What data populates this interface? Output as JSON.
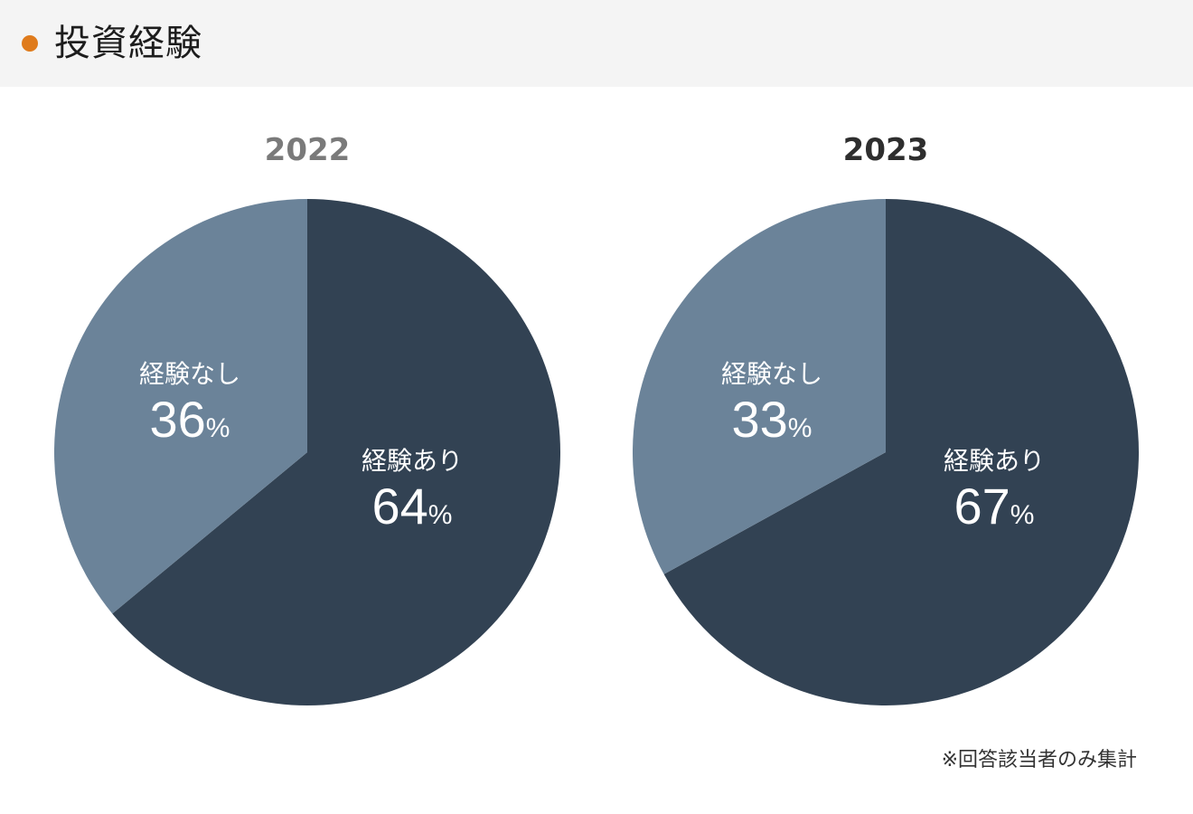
{
  "header": {
    "title": "投資経験",
    "accent_color": "#df7b1c"
  },
  "chart_data": [
    {
      "type": "pie",
      "title": "2022",
      "title_color": "#7a7a7a",
      "unit": "%",
      "slices": [
        {
          "label": "経験あり",
          "value": 64,
          "color": "#324253"
        },
        {
          "label": "経験なし",
          "value": 36,
          "color": "#6b8399"
        }
      ]
    },
    {
      "type": "pie",
      "title": "2023",
      "title_color": "#2e2e2e",
      "unit": "%",
      "slices": [
        {
          "label": "経験あり",
          "value": 67,
          "color": "#324253"
        },
        {
          "label": "経験なし",
          "value": 33,
          "color": "#6b8399"
        }
      ]
    }
  ],
  "footnote": "※回答該当者のみ集計"
}
